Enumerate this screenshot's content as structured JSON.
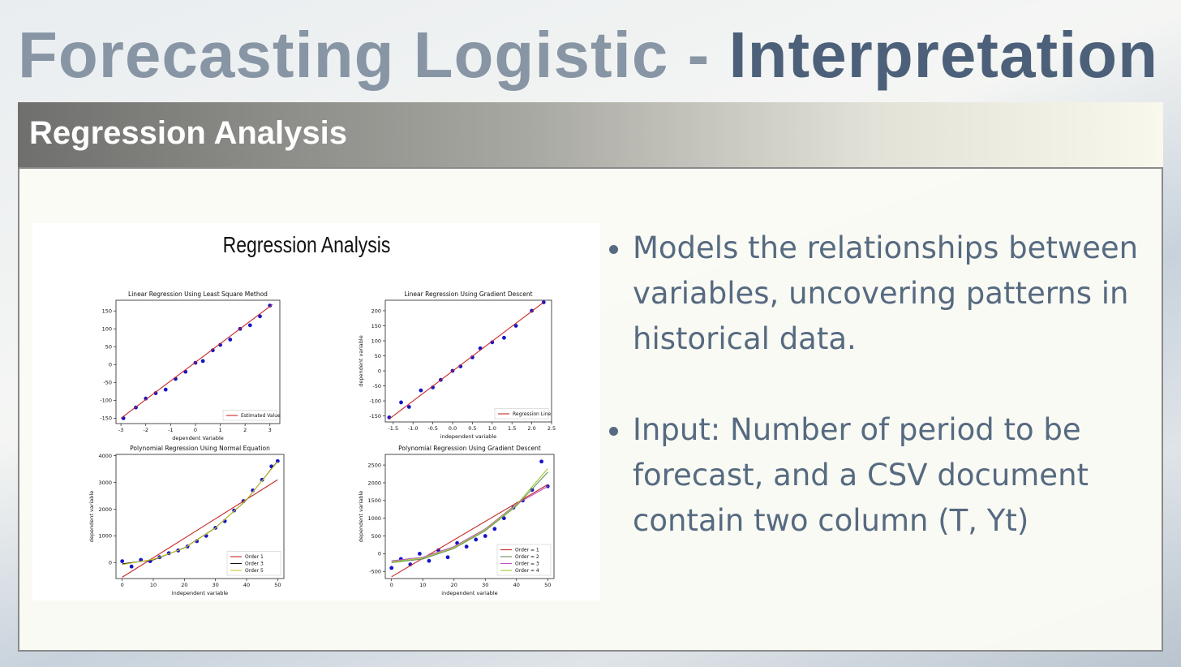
{
  "header": {
    "title_light": "Forecasting Logistic -",
    "title_dark": "Interpretation"
  },
  "section": {
    "title": "Regression Analysis"
  },
  "figure": {
    "title": "Regression Analysis",
    "plots": [
      {
        "title": "Linear Regression Using Least Square Method",
        "xlabel": "dependent Variable",
        "xlim": [
          -3.2,
          3.4
        ],
        "ylim": [
          -165,
          180
        ],
        "xticks": [
          -3,
          -2,
          -1,
          0,
          1,
          2,
          3
        ],
        "yticks": [
          -150,
          -100,
          -50,
          0,
          50,
          100,
          150
        ],
        "points": {
          "x": [
            -2.9,
            -2.4,
            -2,
            -1.6,
            -1.2,
            -0.8,
            -0.4,
            0,
            0.3,
            0.7,
            1,
            1.4,
            1.8,
            2.2,
            2.6,
            3.0
          ],
          "y": [
            -150,
            -120,
            -95,
            -80,
            -70,
            -40,
            -20,
            5,
            10,
            40,
            55,
            70,
            100,
            110,
            135,
            165
          ]
        },
        "lines": [
          {
            "name": "Estimated Value",
            "color": "#c62828",
            "x": [
              -3,
              3.1
            ],
            "y": [
              -150,
              168
            ]
          }
        ]
      },
      {
        "title": "Linear Regression Using Gradient Descent",
        "xlabel": "independent variable",
        "ylabel": "dependent variable",
        "xlim": [
          -1.7,
          2.5
        ],
        "ylim": [
          -170,
          235
        ],
        "xticks": [
          {
            "value": -1.5,
            "label": "-1.5"
          },
          {
            "value": -1,
            "label": "-1.0"
          },
          {
            "value": -0.5,
            "label": "-0.5"
          },
          {
            "value": 0,
            "label": "0.0"
          },
          {
            "value": 0.5,
            "label": "0.5"
          },
          {
            "value": 1,
            "label": "1.0"
          },
          {
            "value": 1.5,
            "label": "1.5"
          },
          {
            "value": 2,
            "label": "2.0"
          },
          {
            "value": 2.5,
            "label": "2.5"
          }
        ],
        "yticks": [
          -150,
          -100,
          -50,
          0,
          50,
          100,
          150,
          200
        ],
        "points": {
          "x": [
            -1.6,
            -1.3,
            -1.1,
            -0.8,
            -0.5,
            -0.3,
            0,
            0.2,
            0.5,
            0.7,
            1.0,
            1.3,
            1.6,
            2.0,
            2.3
          ],
          "y": [
            -155,
            -105,
            -120,
            -65,
            -55,
            -30,
            0,
            15,
            45,
            75,
            95,
            110,
            150,
            200,
            228
          ]
        },
        "lines": [
          {
            "name": "Regression Line",
            "color": "#c62828",
            "x": [
              -1.6,
              2.3
            ],
            "y": [
              -160,
              228
            ]
          }
        ]
      },
      {
        "title": "Polynomial Regression Using Normal Equation",
        "xlabel": "independent variable",
        "ylabel": "dependent variable",
        "xlim": [
          -2,
          52
        ],
        "ylim": [
          -600,
          4050
        ],
        "xticks": [
          0,
          10,
          20,
          30,
          40,
          50
        ],
        "yticks": [
          0,
          1000,
          2000,
          3000,
          4000
        ],
        "points": {
          "x": [
            0,
            3,
            6,
            9,
            12,
            15,
            18,
            21,
            24,
            27,
            30,
            33,
            36,
            39,
            42,
            45,
            48,
            50
          ],
          "y": [
            50,
            -150,
            100,
            50,
            200,
            350,
            450,
            600,
            800,
            1000,
            1300,
            1550,
            1950,
            2300,
            2700,
            3100,
            3600,
            3800
          ]
        },
        "lines": [
          {
            "name": "Order 1",
            "color": "#c62828",
            "x": [
              0,
              50
            ],
            "y": [
              -550,
              3100
            ]
          },
          {
            "name": "Order 3",
            "color": "#111111",
            "x": [
              0,
              10,
              20,
              30,
              40,
              50
            ],
            "y": [
              -50,
              100,
              550,
              1300,
              2350,
              3800
            ]
          },
          {
            "name": "Order 5",
            "color": "#c8c832",
            "x": [
              0,
              10,
              20,
              30,
              40,
              50
            ],
            "y": [
              -80,
              120,
              540,
              1290,
              2360,
              3780
            ]
          }
        ]
      },
      {
        "title": "Polynomial Regression Using Gradient Descent",
        "xlabel": "independent variable",
        "ylabel": "dependent variable",
        "xlim": [
          -2,
          52
        ],
        "ylim": [
          -700,
          2800
        ],
        "xticks": [
          0,
          10,
          20,
          30,
          40,
          50
        ],
        "yticks": [
          -500,
          0,
          500,
          1000,
          1500,
          2000,
          2500
        ],
        "points": {
          "x": [
            0,
            3,
            6,
            9,
            12,
            15,
            18,
            21,
            24,
            27,
            30,
            33,
            36,
            39,
            42,
            45,
            48,
            50
          ],
          "y": [
            -400,
            -150,
            -300,
            0,
            -200,
            100,
            -100,
            300,
            200,
            400,
            500,
            700,
            1000,
            1300,
            1500,
            1800,
            2600,
            1900
          ]
        },
        "lines": [
          {
            "name": "Order = 1",
            "color": "#c62828",
            "x": [
              0,
              50
            ],
            "y": [
              -650,
              1950
            ]
          },
          {
            "name": "Order = 2",
            "color": "#6b8e5a",
            "x": [
              0,
              10,
              20,
              30,
              40,
              50
            ],
            "y": [
              -250,
              -150,
              150,
              650,
              1350,
              2300
            ]
          },
          {
            "name": "Order = 3",
            "color": "#c04fc0",
            "x": [
              0,
              10,
              20,
              30,
              40,
              50
            ],
            "y": [
              -200,
              -100,
              200,
              700,
              1400,
              1900
            ]
          },
          {
            "name": "Order = 4",
            "color": "#9acd32",
            "x": [
              0,
              10,
              20,
              30,
              40,
              50
            ],
            "y": [
              -230,
              -120,
              170,
              680,
              1380,
              2400
            ]
          }
        ]
      }
    ]
  },
  "bullets": [
    "Models the relationships between variables, uncovering patterns in historical data.",
    "Input: Number of period to be forecast, and a CSV document contain two column (T, Yt)"
  ]
}
